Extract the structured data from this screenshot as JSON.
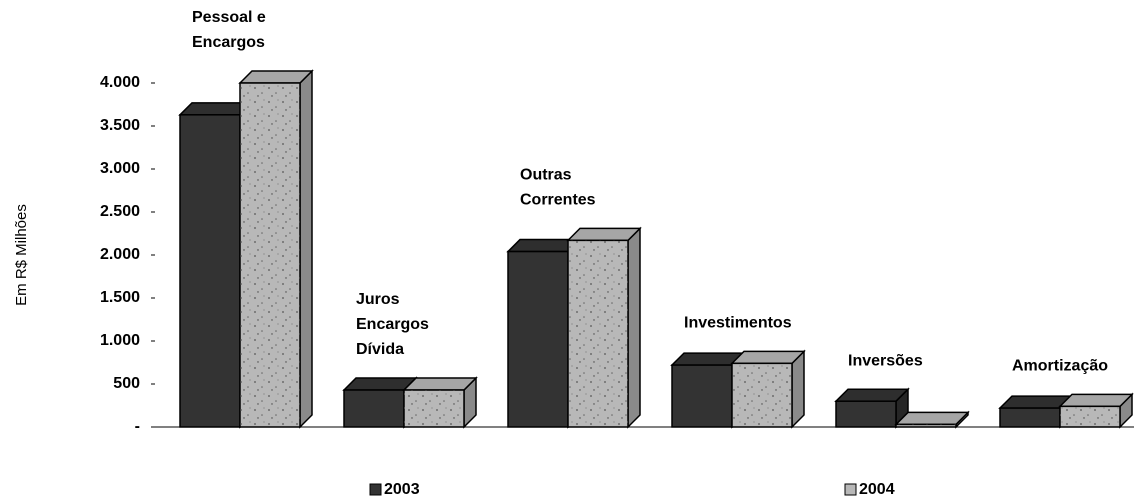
{
  "chart_data": {
    "type": "bar3d",
    "y_label": "Em R$ Milhões",
    "categories": [
      [
        "Pessoal e",
        "Encargos"
      ],
      [
        "Juros",
        "Encargos",
        "Dívida"
      ],
      [
        "Outras",
        "Correntes"
      ],
      [
        "Investimentos"
      ],
      [
        "Inversões"
      ],
      [
        "Amortização"
      ]
    ],
    "series": [
      {
        "name": "2003",
        "color": "#333333",
        "values": [
          3630,
          430,
          2040,
          720,
          300,
          220
        ]
      },
      {
        "name": "2004",
        "color": "#b8b8b8",
        "values": [
          4000,
          430,
          2170,
          740,
          30,
          240
        ]
      }
    ],
    "ylim": [
      0,
      4000
    ],
    "yticks": [
      {
        "value": 0,
        "label": "-"
      },
      500,
      {
        "value": 1000,
        "label": "1.000"
      },
      {
        "value": 1500,
        "label": "1.500"
      },
      {
        "value": 2000,
        "label": "2.000"
      },
      {
        "value": 2500,
        "label": "2.500"
      },
      {
        "value": 3000,
        "label": "3.000"
      },
      {
        "value": 3500,
        "label": "3.500"
      },
      {
        "value": 4000,
        "label": "4.000"
      }
    ]
  }
}
